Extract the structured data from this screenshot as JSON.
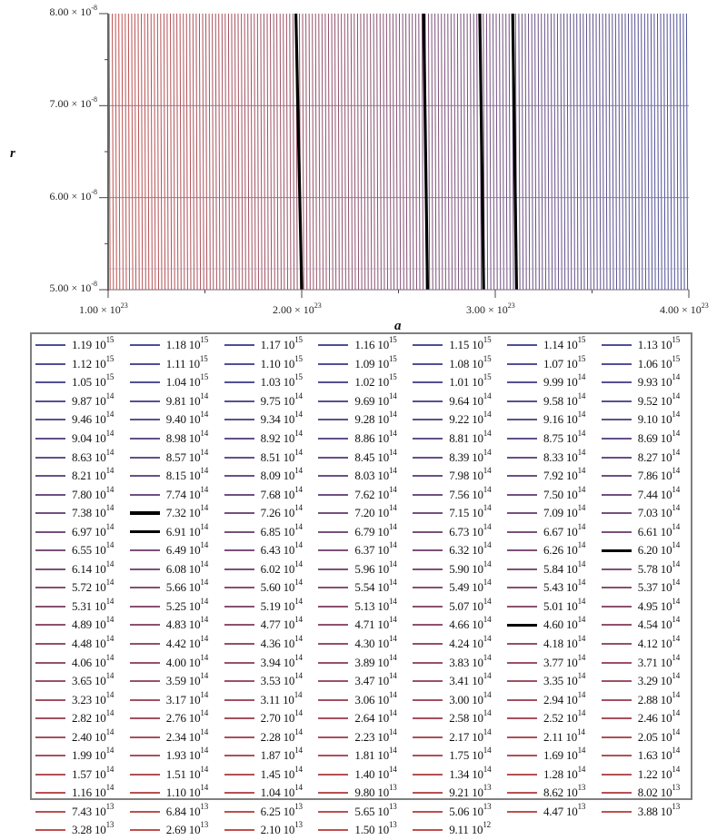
{
  "chart_data": {
    "type": "line",
    "subtype": "contour",
    "title": "",
    "xlabel": "a",
    "ylabel": "r",
    "xlim": [
      1e+23,
      4e+23
    ],
    "ylim": [
      5e-08,
      8e-08
    ],
    "grid": true,
    "legend_position": "bottom",
    "x_ticks": [
      {
        "value": 1e+23,
        "mantissa": "1.00",
        "exp": "23"
      },
      {
        "value": 2e+23,
        "mantissa": "2.00",
        "exp": "23"
      },
      {
        "value": 3e+23,
        "mantissa": "3.00",
        "exp": "23"
      },
      {
        "value": 4e+23,
        "mantissa": "4.00",
        "exp": "23"
      }
    ],
    "y_ticks": [
      {
        "value": 8e-08,
        "mantissa": "8.00",
        "exp": "-8"
      },
      {
        "value": 7e-08,
        "mantissa": "7.00",
        "exp": "-8"
      },
      {
        "value": 6e-08,
        "mantissa": "6.00",
        "exp": "-8"
      },
      {
        "value": 5e-08,
        "mantissa": "5.00",
        "exp": "-8"
      }
    ],
    "highlighted_contours": [
      {
        "level": "7.32 10^14",
        "x_top": 1.97e+23,
        "x_bottom": 2e+23
      },
      {
        "level": "6.91 10^14",
        "x_top": 2.63e+23,
        "x_bottom": 2.65e+23
      },
      {
        "level": "6.20 10^14",
        "x_top": 2.92e+23,
        "x_bottom": 2.94e+23
      },
      {
        "level": "4.60 10^14",
        "x_top": 3.09e+23,
        "x_bottom": 3.11e+23
      }
    ],
    "color_gradient": {
      "low": "#c0504d",
      "high": "#4a4f9a"
    },
    "series": [
      {
        "m": "1.19",
        "e": "15"
      },
      {
        "m": "1.18",
        "e": "15"
      },
      {
        "m": "1.17",
        "e": "15"
      },
      {
        "m": "1.16",
        "e": "15"
      },
      {
        "m": "1.15",
        "e": "15"
      },
      {
        "m": "1.14",
        "e": "15"
      },
      {
        "m": "1.13",
        "e": "15"
      },
      {
        "m": "1.12",
        "e": "15"
      },
      {
        "m": "1.11",
        "e": "15"
      },
      {
        "m": "1.10",
        "e": "15"
      },
      {
        "m": "1.09",
        "e": "15"
      },
      {
        "m": "1.08",
        "e": "15"
      },
      {
        "m": "1.07",
        "e": "15"
      },
      {
        "m": "1.06",
        "e": "15"
      },
      {
        "m": "1.05",
        "e": "15"
      },
      {
        "m": "1.04",
        "e": "15"
      },
      {
        "m": "1.03",
        "e": "15"
      },
      {
        "m": "1.02",
        "e": "15"
      },
      {
        "m": "1.01",
        "e": "15"
      },
      {
        "m": "9.99",
        "e": "14"
      },
      {
        "m": "9.93",
        "e": "14"
      },
      {
        "m": "9.87",
        "e": "14"
      },
      {
        "m": "9.81",
        "e": "14"
      },
      {
        "m": "9.75",
        "e": "14"
      },
      {
        "m": "9.69",
        "e": "14"
      },
      {
        "m": "9.64",
        "e": "14"
      },
      {
        "m": "9.58",
        "e": "14"
      },
      {
        "m": "9.52",
        "e": "14"
      },
      {
        "m": "9.46",
        "e": "14"
      },
      {
        "m": "9.40",
        "e": "14"
      },
      {
        "m": "9.34",
        "e": "14"
      },
      {
        "m": "9.28",
        "e": "14"
      },
      {
        "m": "9.22",
        "e": "14"
      },
      {
        "m": "9.16",
        "e": "14"
      },
      {
        "m": "9.10",
        "e": "14"
      },
      {
        "m": "9.04",
        "e": "14"
      },
      {
        "m": "8.98",
        "e": "14"
      },
      {
        "m": "8.92",
        "e": "14"
      },
      {
        "m": "8.86",
        "e": "14"
      },
      {
        "m": "8.81",
        "e": "14"
      },
      {
        "m": "8.75",
        "e": "14"
      },
      {
        "m": "8.69",
        "e": "14"
      },
      {
        "m": "8.63",
        "e": "14"
      },
      {
        "m": "8.57",
        "e": "14"
      },
      {
        "m": "8.51",
        "e": "14"
      },
      {
        "m": "8.45",
        "e": "14"
      },
      {
        "m": "8.39",
        "e": "14"
      },
      {
        "m": "8.33",
        "e": "14"
      },
      {
        "m": "8.27",
        "e": "14"
      },
      {
        "m": "8.21",
        "e": "14"
      },
      {
        "m": "8.15",
        "e": "14"
      },
      {
        "m": "8.09",
        "e": "14"
      },
      {
        "m": "8.03",
        "e": "14"
      },
      {
        "m": "7.98",
        "e": "14"
      },
      {
        "m": "7.92",
        "e": "14"
      },
      {
        "m": "7.86",
        "e": "14"
      },
      {
        "m": "7.80",
        "e": "14"
      },
      {
        "m": "7.74",
        "e": "14"
      },
      {
        "m": "7.68",
        "e": "14"
      },
      {
        "m": "7.62",
        "e": "14"
      },
      {
        "m": "7.56",
        "e": "14"
      },
      {
        "m": "7.50",
        "e": "14"
      },
      {
        "m": "7.44",
        "e": "14"
      },
      {
        "m": "7.38",
        "e": "14"
      },
      {
        "m": "7.32",
        "e": "14",
        "thick": true
      },
      {
        "m": "7.26",
        "e": "14"
      },
      {
        "m": "7.20",
        "e": "14"
      },
      {
        "m": "7.15",
        "e": "14"
      },
      {
        "m": "7.09",
        "e": "14"
      },
      {
        "m": "7.03",
        "e": "14"
      },
      {
        "m": "6.97",
        "e": "14"
      },
      {
        "m": "6.91",
        "e": "14",
        "thick": true
      },
      {
        "m": "6.85",
        "e": "14"
      },
      {
        "m": "6.79",
        "e": "14"
      },
      {
        "m": "6.73",
        "e": "14"
      },
      {
        "m": "6.67",
        "e": "14"
      },
      {
        "m": "6.61",
        "e": "14"
      },
      {
        "m": "6.55",
        "e": "14"
      },
      {
        "m": "6.49",
        "e": "14"
      },
      {
        "m": "6.43",
        "e": "14"
      },
      {
        "m": "6.37",
        "e": "14"
      },
      {
        "m": "6.32",
        "e": "14"
      },
      {
        "m": "6.26",
        "e": "14"
      },
      {
        "m": "6.20",
        "e": "14",
        "thick": true
      },
      {
        "m": "6.14",
        "e": "14"
      },
      {
        "m": "6.08",
        "e": "14"
      },
      {
        "m": "6.02",
        "e": "14"
      },
      {
        "m": "5.96",
        "e": "14"
      },
      {
        "m": "5.90",
        "e": "14"
      },
      {
        "m": "5.84",
        "e": "14"
      },
      {
        "m": "5.78",
        "e": "14"
      },
      {
        "m": "5.72",
        "e": "14"
      },
      {
        "m": "5.66",
        "e": "14"
      },
      {
        "m": "5.60",
        "e": "14"
      },
      {
        "m": "5.54",
        "e": "14"
      },
      {
        "m": "5.49",
        "e": "14"
      },
      {
        "m": "5.43",
        "e": "14"
      },
      {
        "m": "5.37",
        "e": "14"
      },
      {
        "m": "5.31",
        "e": "14"
      },
      {
        "m": "5.25",
        "e": "14"
      },
      {
        "m": "5.19",
        "e": "14"
      },
      {
        "m": "5.13",
        "e": "14"
      },
      {
        "m": "5.07",
        "e": "14"
      },
      {
        "m": "5.01",
        "e": "14"
      },
      {
        "m": "4.95",
        "e": "14"
      },
      {
        "m": "4.89",
        "e": "14"
      },
      {
        "m": "4.83",
        "e": "14"
      },
      {
        "m": "4.77",
        "e": "14"
      },
      {
        "m": "4.71",
        "e": "14"
      },
      {
        "m": "4.66",
        "e": "14"
      },
      {
        "m": "4.60",
        "e": "14",
        "thick": true
      },
      {
        "m": "4.54",
        "e": "14"
      },
      {
        "m": "4.48",
        "e": "14"
      },
      {
        "m": "4.42",
        "e": "14"
      },
      {
        "m": "4.36",
        "e": "14"
      },
      {
        "m": "4.30",
        "e": "14"
      },
      {
        "m": "4.24",
        "e": "14"
      },
      {
        "m": "4.18",
        "e": "14"
      },
      {
        "m": "4.12",
        "e": "14"
      },
      {
        "m": "4.06",
        "e": "14"
      },
      {
        "m": "4.00",
        "e": "14"
      },
      {
        "m": "3.94",
        "e": "14"
      },
      {
        "m": "3.89",
        "e": "14"
      },
      {
        "m": "3.83",
        "e": "14"
      },
      {
        "m": "3.77",
        "e": "14"
      },
      {
        "m": "3.71",
        "e": "14"
      },
      {
        "m": "3.65",
        "e": "14"
      },
      {
        "m": "3.59",
        "e": "14"
      },
      {
        "m": "3.53",
        "e": "14"
      },
      {
        "m": "3.47",
        "e": "14"
      },
      {
        "m": "3.41",
        "e": "14"
      },
      {
        "m": "3.35",
        "e": "14"
      },
      {
        "m": "3.29",
        "e": "14"
      },
      {
        "m": "3.23",
        "e": "14"
      },
      {
        "m": "3.17",
        "e": "14"
      },
      {
        "m": "3.11",
        "e": "14"
      },
      {
        "m": "3.06",
        "e": "14"
      },
      {
        "m": "3.00",
        "e": "14"
      },
      {
        "m": "2.94",
        "e": "14"
      },
      {
        "m": "2.88",
        "e": "14"
      },
      {
        "m": "2.82",
        "e": "14"
      },
      {
        "m": "2.76",
        "e": "14"
      },
      {
        "m": "2.70",
        "e": "14"
      },
      {
        "m": "2.64",
        "e": "14"
      },
      {
        "m": "2.58",
        "e": "14"
      },
      {
        "m": "2.52",
        "e": "14"
      },
      {
        "m": "2.46",
        "e": "14"
      },
      {
        "m": "2.40",
        "e": "14"
      },
      {
        "m": "2.34",
        "e": "14"
      },
      {
        "m": "2.28",
        "e": "14"
      },
      {
        "m": "2.23",
        "e": "14"
      },
      {
        "m": "2.17",
        "e": "14"
      },
      {
        "m": "2.11",
        "e": "14"
      },
      {
        "m": "2.05",
        "e": "14"
      },
      {
        "m": "1.99",
        "e": "14"
      },
      {
        "m": "1.93",
        "e": "14"
      },
      {
        "m": "1.87",
        "e": "14"
      },
      {
        "m": "1.81",
        "e": "14"
      },
      {
        "m": "1.75",
        "e": "14"
      },
      {
        "m": "1.69",
        "e": "14"
      },
      {
        "m": "1.63",
        "e": "14"
      },
      {
        "m": "1.57",
        "e": "14"
      },
      {
        "m": "1.51",
        "e": "14"
      },
      {
        "m": "1.45",
        "e": "14"
      },
      {
        "m": "1.40",
        "e": "14"
      },
      {
        "m": "1.34",
        "e": "14"
      },
      {
        "m": "1.28",
        "e": "14"
      },
      {
        "m": "1.22",
        "e": "14"
      },
      {
        "m": "1.16",
        "e": "14"
      },
      {
        "m": "1.10",
        "e": "14"
      },
      {
        "m": "1.04",
        "e": "14"
      },
      {
        "m": "9.80",
        "e": "13"
      },
      {
        "m": "9.21",
        "e": "13"
      },
      {
        "m": "8.62",
        "e": "13"
      },
      {
        "m": "8.02",
        "e": "13"
      },
      {
        "m": "7.43",
        "e": "13"
      },
      {
        "m": "6.84",
        "e": "13"
      },
      {
        "m": "6.25",
        "e": "13"
      },
      {
        "m": "5.65",
        "e": "13"
      },
      {
        "m": "5.06",
        "e": "13"
      },
      {
        "m": "4.47",
        "e": "13"
      },
      {
        "m": "3.88",
        "e": "13"
      },
      {
        "m": "3.28",
        "e": "13"
      },
      {
        "m": "2.69",
        "e": "13"
      },
      {
        "m": "2.10",
        "e": "13"
      },
      {
        "m": "1.50",
        "e": "13"
      },
      {
        "m": "9.11",
        "e": "12"
      }
    ]
  },
  "axes": {
    "x_label": "a",
    "y_label": "r",
    "times_sign": "×",
    "base": "10"
  }
}
